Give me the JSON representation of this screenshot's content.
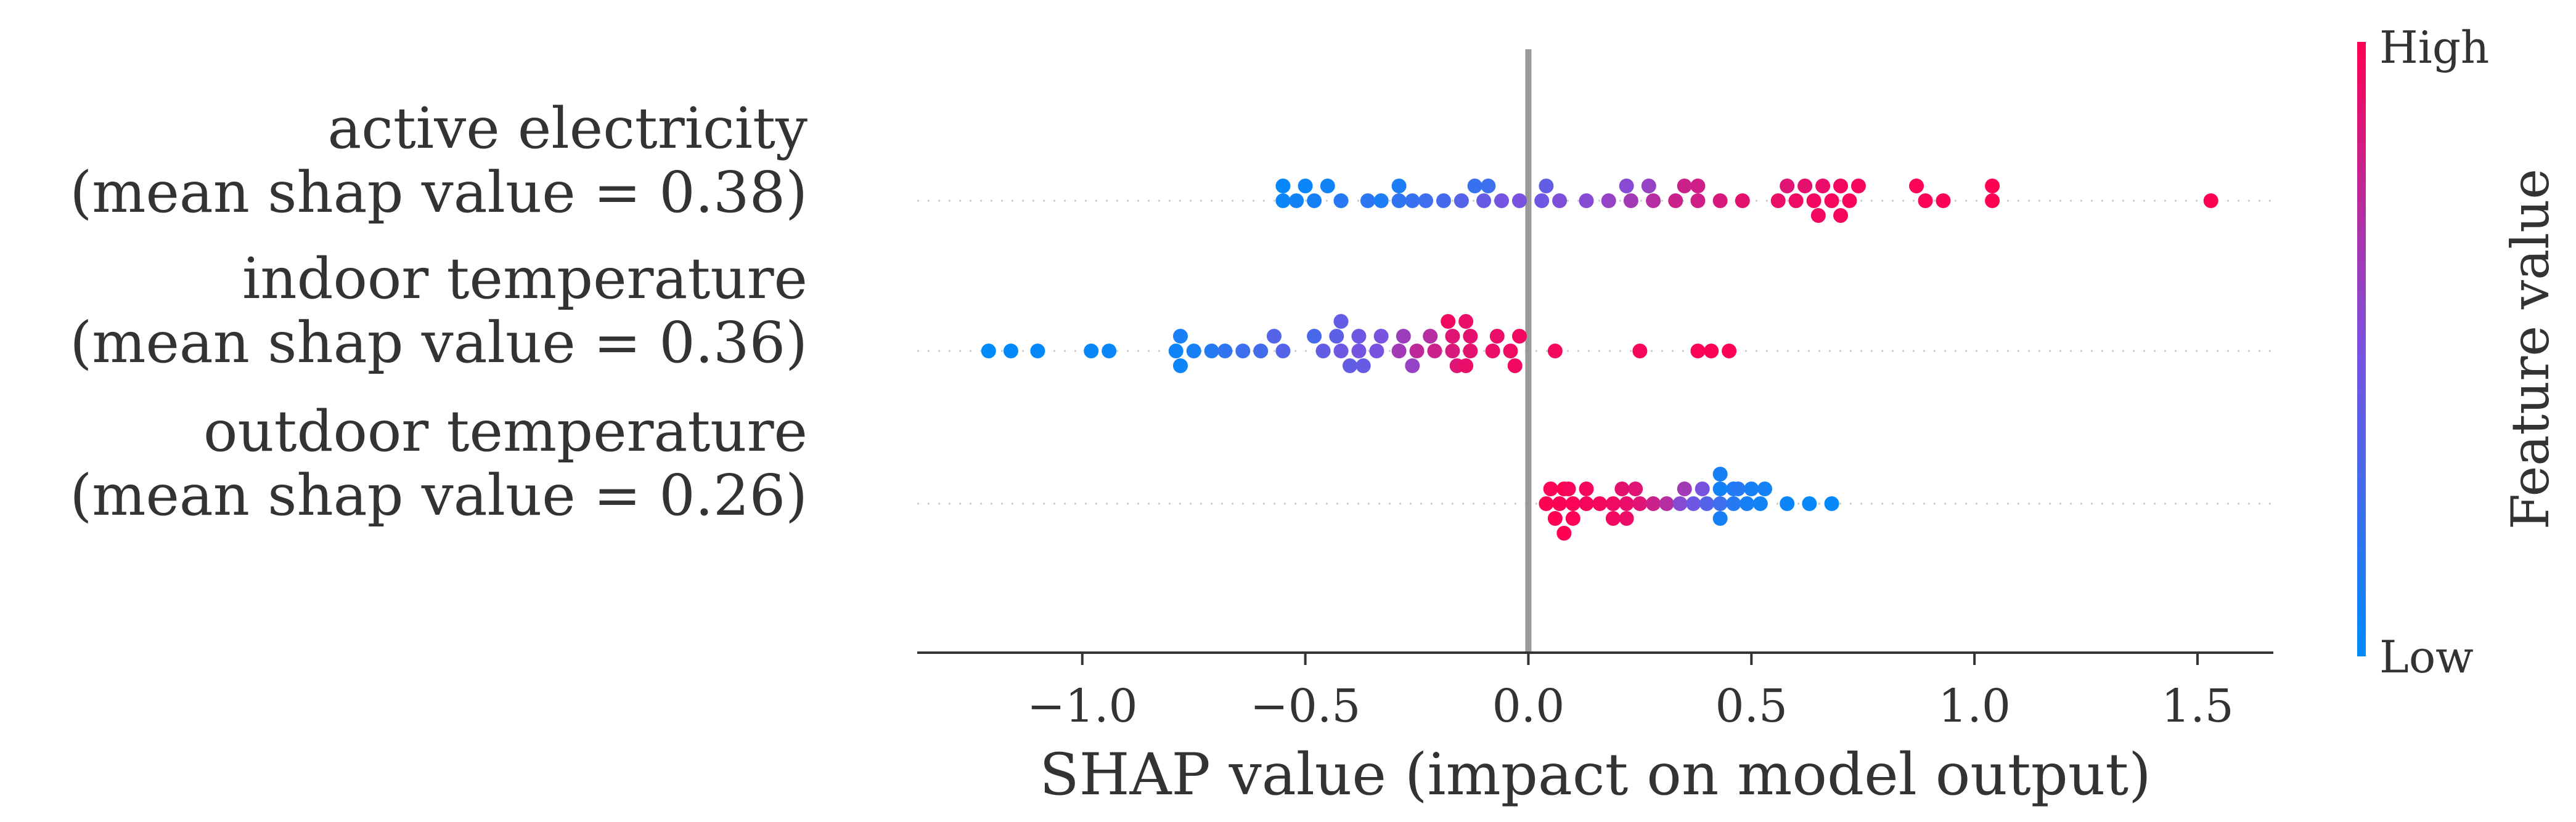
{
  "chart_data": {
    "type": "scatter",
    "subtype": "shap-beeswarm",
    "xlabel": "SHAP value (impact on model output)",
    "xlim": [
      -1.37,
      1.67
    ],
    "x_ticks": [
      -1.0,
      -0.5,
      0.0,
      0.5,
      1.0,
      1.5
    ],
    "x_tick_labels": [
      "−1.0",
      "−0.5",
      "0.0",
      "0.5",
      "1.0",
      "1.5"
    ],
    "features": [
      {
        "line1": "active electricity",
        "line2": "(mean shap value = 0.38)",
        "points": [
          {
            "x": -0.55,
            "v": 0.02,
            "s": 1
          },
          {
            "x": -0.5,
            "v": 0.05,
            "s": 1
          },
          {
            "x": -0.45,
            "v": 0.08,
            "s": 1
          },
          {
            "x": -0.29,
            "v": 0.12,
            "s": 1
          },
          {
            "x": -0.12,
            "v": 0.22,
            "s": 1
          },
          {
            "x": -0.09,
            "v": 0.25,
            "s": 1
          },
          {
            "x": 0.04,
            "v": 0.4,
            "s": 1
          },
          {
            "x": 0.22,
            "v": 0.55,
            "s": 1
          },
          {
            "x": 0.27,
            "v": 0.6,
            "s": 1
          },
          {
            "x": 0.35,
            "v": 0.8,
            "s": 1
          },
          {
            "x": 0.38,
            "v": 0.82,
            "s": 1
          },
          {
            "x": 0.58,
            "v": 0.88,
            "s": 1
          },
          {
            "x": 0.62,
            "v": 0.9,
            "s": 1
          },
          {
            "x": 0.66,
            "v": 0.92,
            "s": 1
          },
          {
            "x": 0.7,
            "v": 0.95,
            "s": 1
          },
          {
            "x": 0.74,
            "v": 0.96,
            "s": 1
          },
          {
            "x": 0.87,
            "v": 0.98,
            "s": 1
          },
          {
            "x": 1.04,
            "v": 1.0,
            "s": 1
          },
          {
            "x": -0.55,
            "v": 0.05,
            "s": 0
          },
          {
            "x": -0.52,
            "v": 0.08,
            "s": 0
          },
          {
            "x": -0.48,
            "v": 0.1,
            "s": 0
          },
          {
            "x": -0.42,
            "v": 0.15,
            "s": 0
          },
          {
            "x": -0.36,
            "v": 0.18,
            "s": 0
          },
          {
            "x": -0.33,
            "v": 0.12,
            "s": 0
          },
          {
            "x": -0.29,
            "v": 0.2,
            "s": 0
          },
          {
            "x": -0.26,
            "v": 0.22,
            "s": 0
          },
          {
            "x": -0.23,
            "v": 0.25,
            "s": 0
          },
          {
            "x": -0.19,
            "v": 0.28,
            "s": 0
          },
          {
            "x": -0.15,
            "v": 0.35,
            "s": 0
          },
          {
            "x": -0.1,
            "v": 0.42,
            "s": 0
          },
          {
            "x": -0.06,
            "v": 0.48,
            "s": 0
          },
          {
            "x": -0.02,
            "v": 0.5,
            "s": 0
          },
          {
            "x": 0.03,
            "v": 0.45,
            "s": 0
          },
          {
            "x": 0.07,
            "v": 0.52,
            "s": 0
          },
          {
            "x": 0.13,
            "v": 0.55,
            "s": 0
          },
          {
            "x": 0.18,
            "v": 0.6,
            "s": 0
          },
          {
            "x": 0.23,
            "v": 0.65,
            "s": 0
          },
          {
            "x": 0.28,
            "v": 0.72,
            "s": 0
          },
          {
            "x": 0.33,
            "v": 0.8,
            "s": 0
          },
          {
            "x": 0.38,
            "v": 0.82,
            "s": 0
          },
          {
            "x": 0.43,
            "v": 0.85,
            "s": 0
          },
          {
            "x": 0.48,
            "v": 0.9,
            "s": 0
          },
          {
            "x": 0.56,
            "v": 0.92,
            "s": 0
          },
          {
            "x": 0.6,
            "v": 0.94,
            "s": 0
          },
          {
            "x": 0.64,
            "v": 0.95,
            "s": 0
          },
          {
            "x": 0.68,
            "v": 0.96,
            "s": 0
          },
          {
            "x": 0.72,
            "v": 0.97,
            "s": 0
          },
          {
            "x": 0.89,
            "v": 0.98,
            "s": 0
          },
          {
            "x": 0.93,
            "v": 0.99,
            "s": 0
          },
          {
            "x": 1.04,
            "v": 1.0,
            "s": 0
          },
          {
            "x": 1.53,
            "v": 1.0,
            "s": 0
          },
          {
            "x": 0.65,
            "v": 0.95,
            "s": -1
          },
          {
            "x": 0.7,
            "v": 0.96,
            "s": -1
          }
        ]
      },
      {
        "line1": "indoor temperature",
        "line2": "(mean shap value = 0.36)",
        "points": [
          {
            "x": -0.18,
            "v": 0.95,
            "s": 2
          },
          {
            "x": -0.14,
            "v": 0.92,
            "s": 2
          },
          {
            "x": -0.42,
            "v": 0.4,
            "s": 2
          },
          {
            "x": -0.78,
            "v": 0.1,
            "s": 1
          },
          {
            "x": -0.57,
            "v": 0.35,
            "s": 1
          },
          {
            "x": -0.48,
            "v": 0.3,
            "s": 1
          },
          {
            "x": -0.43,
            "v": 0.38,
            "s": 1
          },
          {
            "x": -0.38,
            "v": 0.45,
            "s": 1
          },
          {
            "x": -0.33,
            "v": 0.5,
            "s": 1
          },
          {
            "x": -0.28,
            "v": 0.62,
            "s": 1
          },
          {
            "x": -0.22,
            "v": 0.72,
            "s": 1
          },
          {
            "x": -0.17,
            "v": 0.88,
            "s": 1
          },
          {
            "x": -0.13,
            "v": 0.9,
            "s": 1
          },
          {
            "x": -0.07,
            "v": 0.92,
            "s": 1
          },
          {
            "x": -0.02,
            "v": 0.95,
            "s": 1
          },
          {
            "x": -1.21,
            "v": 0.0,
            "s": 0
          },
          {
            "x": -1.16,
            "v": 0.01,
            "s": 0
          },
          {
            "x": -1.1,
            "v": 0.02,
            "s": 0
          },
          {
            "x": -0.98,
            "v": 0.03,
            "s": 0
          },
          {
            "x": -0.94,
            "v": 0.04,
            "s": 0
          },
          {
            "x": -0.79,
            "v": 0.06,
            "s": 0
          },
          {
            "x": -0.75,
            "v": 0.1,
            "s": 0
          },
          {
            "x": -0.71,
            "v": 0.15,
            "s": 0
          },
          {
            "x": -0.68,
            "v": 0.2,
            "s": 0
          },
          {
            "x": -0.64,
            "v": 0.25,
            "s": 0
          },
          {
            "x": -0.6,
            "v": 0.28,
            "s": 0
          },
          {
            "x": -0.55,
            "v": 0.35,
            "s": 0
          },
          {
            "x": -0.46,
            "v": 0.4,
            "s": 0
          },
          {
            "x": -0.42,
            "v": 0.45,
            "s": 0
          },
          {
            "x": -0.38,
            "v": 0.48,
            "s": 0
          },
          {
            "x": -0.34,
            "v": 0.5,
            "s": 0
          },
          {
            "x": -0.29,
            "v": 0.65,
            "s": 0
          },
          {
            "x": -0.25,
            "v": 0.75,
            "s": 0
          },
          {
            "x": -0.21,
            "v": 0.8,
            "s": 0
          },
          {
            "x": -0.17,
            "v": 0.85,
            "s": 0
          },
          {
            "x": -0.13,
            "v": 0.9,
            "s": 0
          },
          {
            "x": -0.08,
            "v": 0.92,
            "s": 0
          },
          {
            "x": -0.04,
            "v": 0.94,
            "s": 0
          },
          {
            "x": 0.06,
            "v": 0.96,
            "s": 0
          },
          {
            "x": 0.25,
            "v": 0.97,
            "s": 0
          },
          {
            "x": 0.38,
            "v": 0.98,
            "s": 0
          },
          {
            "x": 0.41,
            "v": 0.99,
            "s": 0
          },
          {
            "x": 0.45,
            "v": 0.99,
            "s": 0
          },
          {
            "x": -0.78,
            "v": 0.05,
            "s": -1
          },
          {
            "x": -0.4,
            "v": 0.4,
            "s": -1
          },
          {
            "x": -0.37,
            "v": 0.42,
            "s": -1
          },
          {
            "x": -0.26,
            "v": 0.6,
            "s": -1
          },
          {
            "x": -0.16,
            "v": 0.88,
            "s": -1
          },
          {
            "x": -0.14,
            "v": 0.92,
            "s": -1
          },
          {
            "x": -0.03,
            "v": 0.95,
            "s": -1
          }
        ]
      },
      {
        "line1": "outdoor temperature",
        "line2": "(mean shap value = 0.26)",
        "points": [
          {
            "x": 0.08,
            "v": 1.0,
            "s": 1
          },
          {
            "x": 0.43,
            "v": 0.1,
            "s": 2
          },
          {
            "x": 0.46,
            "v": 0.12,
            "s": 1
          },
          {
            "x": 0.43,
            "v": 0.08,
            "s": 1
          },
          {
            "x": 0.05,
            "v": 0.98,
            "s": 1
          },
          {
            "x": 0.09,
            "v": 0.97,
            "s": 1
          },
          {
            "x": 0.13,
            "v": 0.96,
            "s": 1
          },
          {
            "x": 0.21,
            "v": 0.9,
            "s": 1
          },
          {
            "x": 0.24,
            "v": 0.88,
            "s": 1
          },
          {
            "x": 0.35,
            "v": 0.65,
            "s": 1
          },
          {
            "x": 0.39,
            "v": 0.5,
            "s": 1
          },
          {
            "x": 0.47,
            "v": 0.15,
            "s": 1
          },
          {
            "x": 0.5,
            "v": 0.1,
            "s": 1
          },
          {
            "x": 0.53,
            "v": 0.08,
            "s": 1
          },
          {
            "x": 0.04,
            "v": 1.0,
            "s": 0
          },
          {
            "x": 0.07,
            "v": 0.99,
            "s": 0
          },
          {
            "x": 0.1,
            "v": 0.98,
            "s": 0
          },
          {
            "x": 0.13,
            "v": 0.97,
            "s": 0
          },
          {
            "x": 0.16,
            "v": 0.96,
            "s": 0
          },
          {
            "x": 0.19,
            "v": 0.94,
            "s": 0
          },
          {
            "x": 0.22,
            "v": 0.92,
            "s": 0
          },
          {
            "x": 0.25,
            "v": 0.88,
            "s": 0
          },
          {
            "x": 0.28,
            "v": 0.8,
            "s": 0
          },
          {
            "x": 0.31,
            "v": 0.72,
            "s": 0
          },
          {
            "x": 0.34,
            "v": 0.55,
            "s": 0
          },
          {
            "x": 0.37,
            "v": 0.45,
            "s": 0
          },
          {
            "x": 0.4,
            "v": 0.35,
            "s": 0
          },
          {
            "x": 0.43,
            "v": 0.25,
            "s": 0
          },
          {
            "x": 0.46,
            "v": 0.15,
            "s": 0
          },
          {
            "x": 0.49,
            "v": 0.1,
            "s": 0
          },
          {
            "x": 0.52,
            "v": 0.08,
            "s": 0
          },
          {
            "x": 0.58,
            "v": 0.05,
            "s": 0
          },
          {
            "x": 0.63,
            "v": 0.03,
            "s": 0
          },
          {
            "x": 0.68,
            "v": 0.02,
            "s": 0
          },
          {
            "x": 0.06,
            "v": 1.0,
            "s": -1
          },
          {
            "x": 0.1,
            "v": 0.98,
            "s": -1
          },
          {
            "x": 0.19,
            "v": 0.95,
            "s": -1
          },
          {
            "x": 0.22,
            "v": 0.93,
            "s": -1
          },
          {
            "x": 0.43,
            "v": 0.1,
            "s": -1
          },
          {
            "x": 0.08,
            "v": 1.0,
            "s": -2
          }
        ]
      }
    ],
    "colorbar": {
      "label": "Feature value",
      "high_label": "High",
      "low_label": "Low",
      "low_color": "#008bfb",
      "mid_color": "#7a52e0",
      "high_color": "#ff0052"
    },
    "colors": {
      "zero_line": "#999999",
      "axis": "#333333",
      "grid_dots": "#cccccc"
    }
  }
}
